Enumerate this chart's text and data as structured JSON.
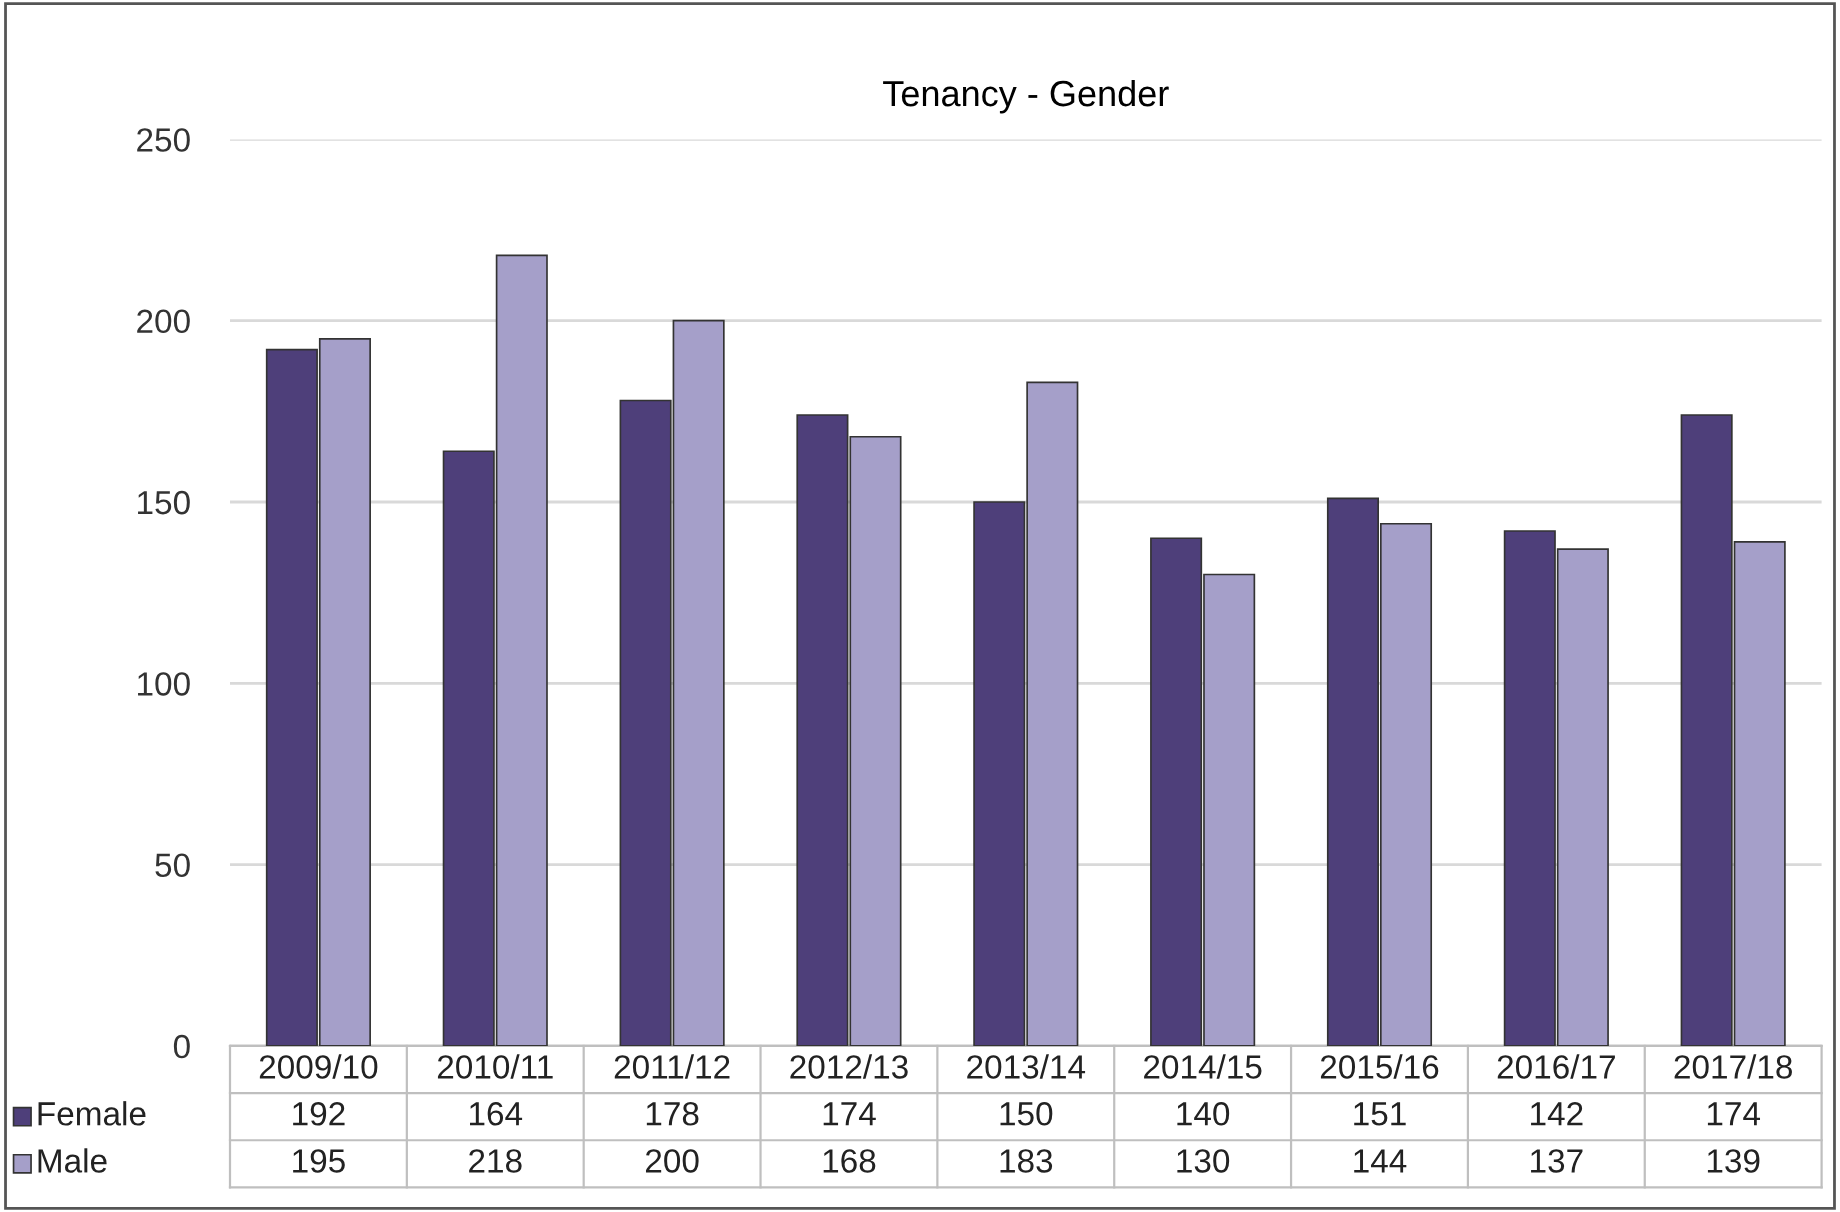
{
  "chart_data": {
    "type": "bar",
    "title": "Tenancy - Gender",
    "categories": [
      "2009/10",
      "2010/11",
      "2011/12",
      "2012/13",
      "2013/14",
      "2014/15",
      "2015/16",
      "2016/17",
      "2017/18"
    ],
    "series": [
      {
        "name": "Female",
        "color": "#4e3f7a",
        "values": [
          192,
          164,
          178,
          174,
          150,
          140,
          151,
          142,
          174
        ]
      },
      {
        "name": "Male",
        "color": "#a59fc9",
        "values": [
          195,
          218,
          200,
          168,
          183,
          130,
          144,
          137,
          139
        ]
      }
    ],
    "ylim": [
      0,
      250
    ],
    "yticks": [
      0,
      50,
      100,
      150,
      200,
      250
    ],
    "grid": "y",
    "legend": "bottom",
    "data_labels": true
  }
}
